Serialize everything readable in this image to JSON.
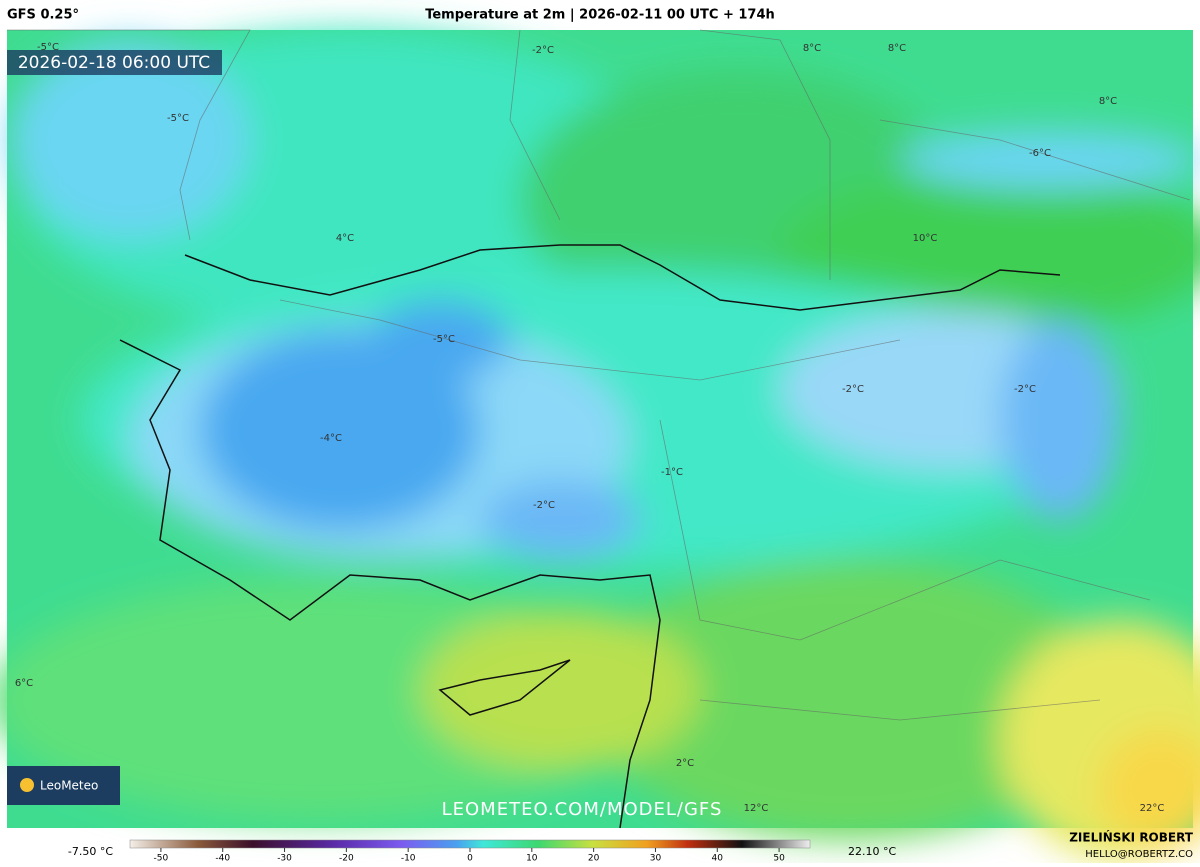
{
  "header": {
    "model": "GFS 0.25°",
    "title": "Temperature at 2m | 2026-02-11 00 UTC + 174h"
  },
  "map": {
    "valid_time": "2026-02-18 06:00 UTC",
    "labels": [
      "-2°C",
      "-5°C",
      "-5°C",
      "8°C",
      "8°C",
      "8°C",
      "-6°C",
      "4°C",
      "10°C",
      "-5°C",
      "-2°C",
      "-2°C",
      "-4°C",
      "-1°C",
      "-2°C",
      "6°C",
      "2°C",
      "12°C",
      "22°C"
    ],
    "logo": "LeoMeteo",
    "watermark": "LEOMETEO.COM/MODEL/GFS"
  },
  "colorbar": {
    "min_label": "-7.50 °C",
    "max_label": "22.10 °C",
    "range": [
      -55,
      55
    ],
    "ticks": [
      -50,
      -40,
      -30,
      -20,
      -10,
      0,
      10,
      20,
      30,
      40,
      50
    ]
  },
  "footer": {
    "author": "ZIELIŃSKI ROBERT",
    "contact": "HELLO@ROBERTZ.CO"
  }
}
